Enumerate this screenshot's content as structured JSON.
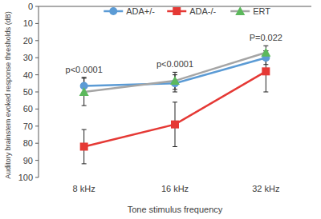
{
  "chart_data": {
    "type": "line",
    "x_label": "Tone stimulus frequency",
    "y_label": "Auditory brainstem evoked response thresholds (dB)",
    "categories": [
      "8 kHz",
      "16 kHz",
      "32 kHz"
    ],
    "ylim": [
      100,
      0
    ],
    "yticks": [
      0,
      10,
      20,
      30,
      40,
      50,
      60,
      70,
      80,
      90,
      100
    ],
    "grid": false,
    "legend": "top",
    "series": [
      {
        "name": "ADA+/-",
        "color": "#5b9bd5",
        "marker": "circle",
        "values": [
          46.5,
          45,
          30
        ],
        "errors": [
          5,
          5,
          4
        ]
      },
      {
        "name": "ADA-/-",
        "color": "#e53935",
        "marker": "square",
        "values": [
          82,
          69,
          38
        ],
        "errors": [
          10,
          13,
          12
        ]
      },
      {
        "name": "ERT",
        "color": "#a5a5a5",
        "colors": [
          "#5cb85c",
          "#5cb85c",
          "#5cb85c"
        ],
        "marker": "triangle",
        "values": [
          50,
          43.5,
          27
        ],
        "errors": [
          8,
          5,
          4
        ]
      }
    ],
    "annotations": [
      {
        "text": "p<0.0001",
        "x": "8 kHz"
      },
      {
        "text": "p<0.0001",
        "x": "16 kHz"
      },
      {
        "text": "P=0.022",
        "x": "32 kHz"
      }
    ]
  }
}
